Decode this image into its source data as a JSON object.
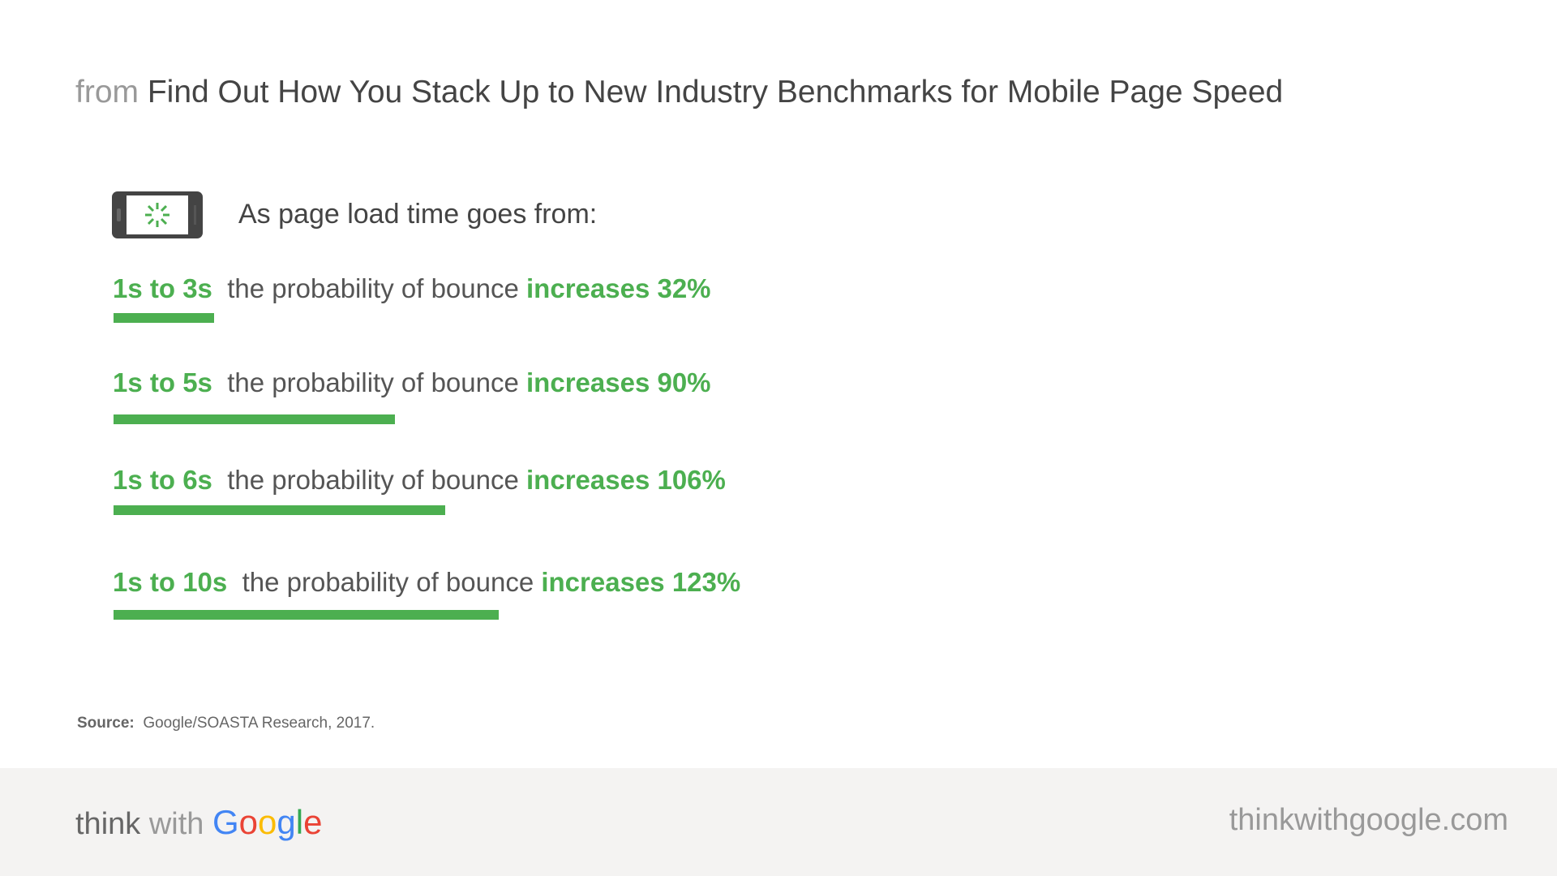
{
  "header": {
    "prefix": "from",
    "title": "Find Out How You Stack Up to New Industry Benchmarks for Mobile Page Speed"
  },
  "intro": "As page load time goes from:",
  "chart_data": {
    "type": "bar",
    "orientation": "horizontal",
    "rows": [
      {
        "range": "1s to 3s",
        "text": "the probability of bounce",
        "result": "increases 32%",
        "value": 32
      },
      {
        "range": "1s to 5s",
        "text": "the probability of bounce",
        "result": "increases 90%",
        "value": 90
      },
      {
        "range": "1s to 6s",
        "text": "the probability of bounce",
        "result": "increases 106%",
        "value": 106
      },
      {
        "range": "1s to 10s",
        "text": "the probability of bounce",
        "result": "increases 123%",
        "value": 123
      }
    ],
    "unit": "%",
    "bar_color": "#4caf50"
  },
  "source": {
    "label": "Source:",
    "text": "Google/SOASTA Research, 2017."
  },
  "footer": {
    "logo_think": "think",
    "logo_with": "with",
    "logo_google": "Google",
    "site": "thinkwithgoogle.com"
  },
  "colors": {
    "green": "#4caf50",
    "footer_bg": "#f4f3f2",
    "google_blue": "#4285f4",
    "google_red": "#ea4335",
    "google_yellow": "#fbbc05",
    "google_green": "#34a853"
  },
  "icons": {
    "phone": "phone-loading-icon"
  }
}
